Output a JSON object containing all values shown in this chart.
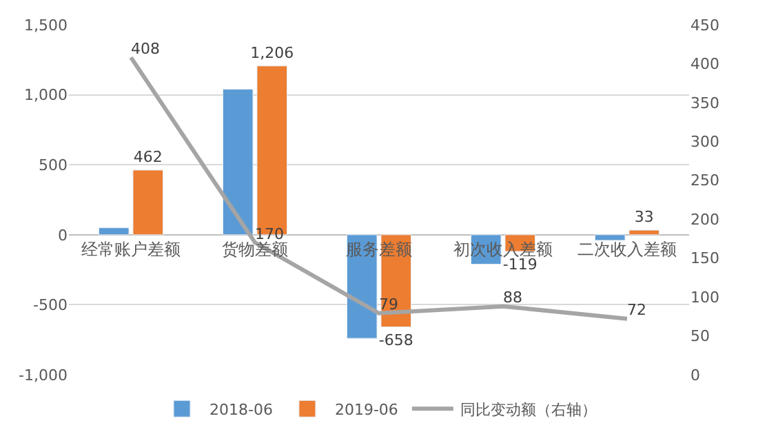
{
  "chart_data": {
    "type": "bar",
    "categories": [
      "经常账户差额",
      "货物差额",
      "服务差额",
      "初次收入差额",
      "二次收入差额"
    ],
    "series": [
      {
        "name": "2018-06",
        "color": "#5b9bd5",
        "values": [
          50,
          1040,
          -740,
          -210,
          -40
        ],
        "value_labels": [
          null,
          null,
          null,
          null,
          null
        ]
      },
      {
        "name": "2019-06",
        "color": "#ed7d31",
        "values": [
          462,
          1206,
          -658,
          -119,
          33
        ],
        "value_labels": [
          "462",
          "1,206",
          "-658",
          "-119",
          "33"
        ]
      },
      {
        "name": "同比变动额（右轴）",
        "color": "#a5a5a5",
        "type": "line",
        "axis": "y2",
        "values": [
          408,
          170,
          79,
          88,
          72
        ],
        "value_labels": [
          "408",
          "170",
          "79",
          "88",
          "72"
        ]
      }
    ],
    "ylim": [
      -1000,
      1500
    ],
    "yticks": [
      {
        "value": -1000,
        "label": "-1,000"
      },
      -500,
      0,
      500,
      {
        "value": 1000,
        "label": "1,000"
      },
      {
        "value": 1500,
        "label": "1,500"
      }
    ],
    "y2lim": [
      0,
      450
    ],
    "y2ticks": [
      0,
      50,
      100,
      150,
      200,
      250,
      300,
      350,
      400,
      450
    ],
    "grid": "y",
    "legend": "bottom",
    "marker": "none",
    "line_style": "solid"
  }
}
